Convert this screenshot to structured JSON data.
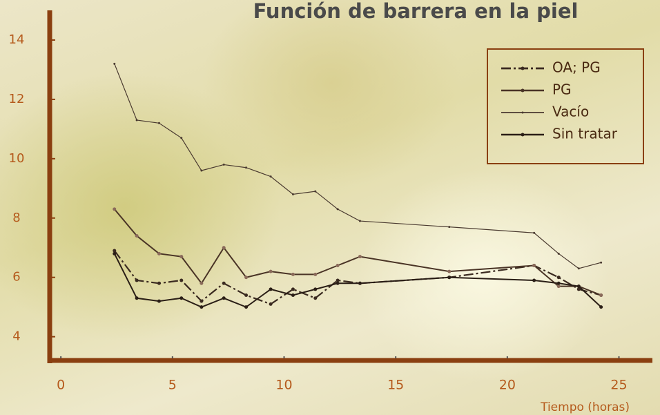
{
  "chart_data": {
    "type": "line",
    "title": "Función de barrera en la piel",
    "x_label": "Tiempo (horas)",
    "x": [
      2.4,
      3.4,
      4.4,
      5.4,
      6.3,
      7.3,
      8.3,
      9.4,
      10.4,
      11.4,
      12.4,
      13.4,
      17.4,
      21.2,
      22.3,
      23.2,
      24.2
    ],
    "series": [
      {
        "name": "OA; PG",
        "color": "#3a2a20",
        "values": [
          6.9,
          5.9,
          5.8,
          5.9,
          5.2,
          5.8,
          5.4,
          5.1,
          5.6,
          5.3,
          5.9,
          5.8,
          6.0,
          6.4,
          6.0,
          5.6,
          5.4
        ]
      },
      {
        "name": "PG",
        "color": "#4a3426",
        "values": [
          8.3,
          7.4,
          6.8,
          6.7,
          5.8,
          7.0,
          6.0,
          6.2,
          6.1,
          6.1,
          6.4,
          6.7,
          6.2,
          6.4,
          5.7,
          5.7,
          5.4
        ]
      },
      {
        "name": "Vacío",
        "color": "#4a3a30",
        "values": [
          13.2,
          11.3,
          11.2,
          10.7,
          9.6,
          9.8,
          9.7,
          9.4,
          8.8,
          8.9,
          8.3,
          7.9,
          7.7,
          7.5,
          6.8,
          6.3,
          6.5
        ]
      },
      {
        "name": "Sin tratar",
        "color": "#2a1e16",
        "values": [
          6.8,
          5.3,
          5.2,
          5.3,
          5.0,
          5.3,
          5.0,
          5.6,
          5.4,
          5.6,
          5.8,
          5.8,
          6.0,
          5.9,
          5.8,
          5.7,
          5.0
        ]
      }
    ],
    "xlim": [
      -0.5,
      26.5
    ],
    "xticks": [
      0,
      5,
      10,
      15,
      20,
      25
    ],
    "ylim": [
      3.2,
      15
    ],
    "yticks": [
      4,
      6,
      8,
      10,
      12,
      14
    ],
    "axis_color": "#8a3f10",
    "tick_color": "#b55a1c",
    "legend": "upper right"
  }
}
